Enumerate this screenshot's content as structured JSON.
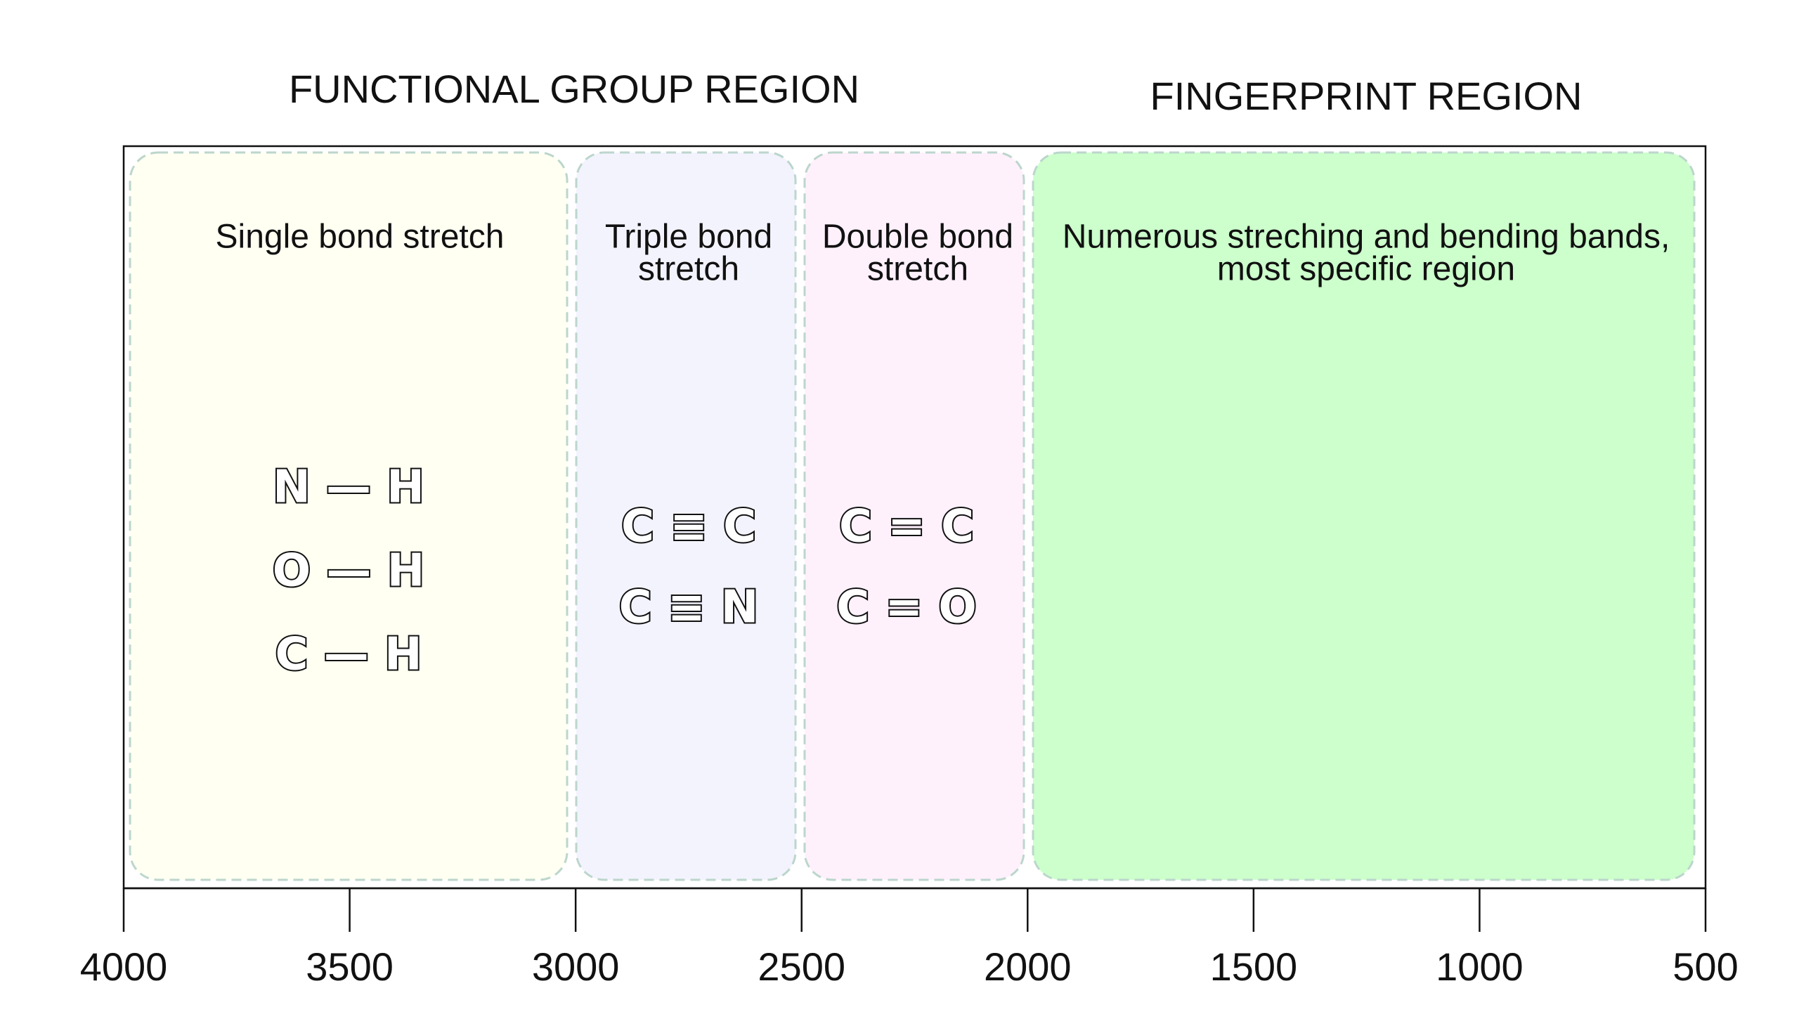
{
  "titles": {
    "functional": "FUNCTIONAL GROUP REGION",
    "fingerprint": "FINGERPRINT REGION"
  },
  "regions": [
    {
      "label": [
        "Single bond stretch"
      ],
      "bonds": [
        "N — H",
        "O — H",
        "C — H"
      ]
    },
    {
      "label": [
        "Triple bond",
        "stretch"
      ],
      "bonds": [
        "C ≡ C",
        "C ≡ N"
      ]
    },
    {
      "label": [
        "Double bond",
        "stretch"
      ],
      "bonds": [
        "C = C",
        "C = O"
      ]
    },
    {
      "label": [
        "Numerous streching and bending bands,",
        "most specific region"
      ]
    }
  ],
  "axis": {
    "xlim": [
      4000,
      500
    ],
    "xticks": [
      4000,
      3500,
      3000,
      2500,
      2000,
      1500,
      1000,
      500
    ]
  }
}
